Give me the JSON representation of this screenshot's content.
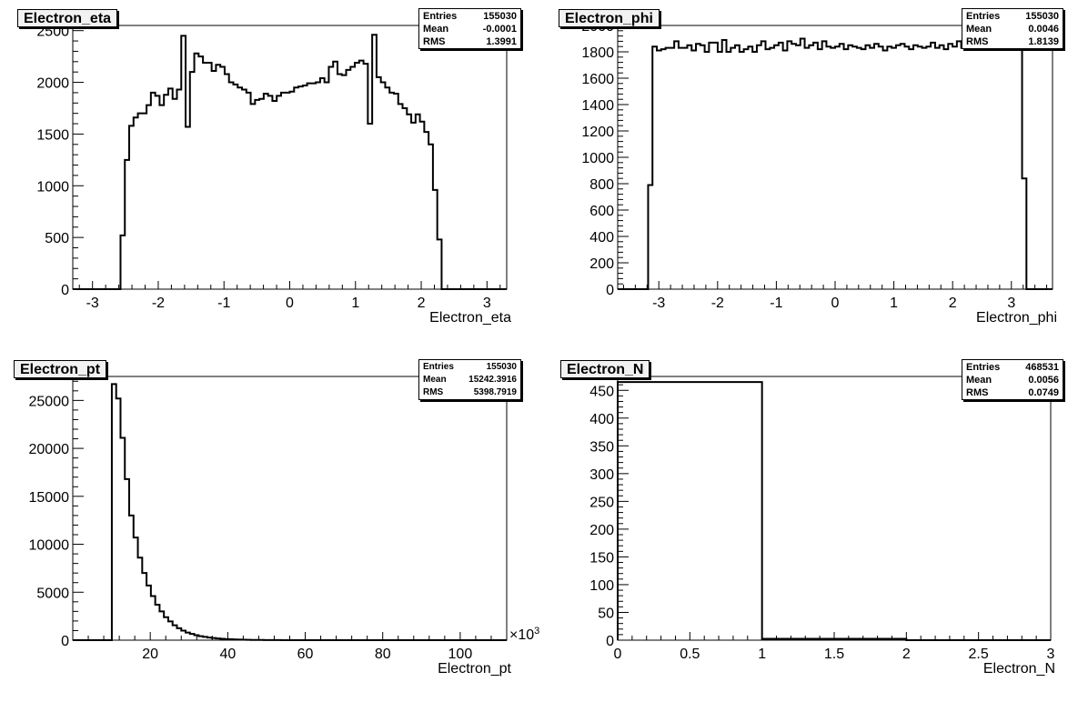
{
  "chart_data": [
    {
      "type": "histogram",
      "title": "Electron_eta",
      "xlabel": "Electron_eta",
      "ylabel": "",
      "xlim": [
        -3.3,
        3.3
      ],
      "ylim": [
        0,
        2550
      ],
      "xticks": [
        -3,
        -2,
        -1,
        0,
        1,
        2,
        3
      ],
      "yticks": [
        0,
        500,
        1000,
        1500,
        2000,
        2500
      ],
      "stats": {
        "entries_label": "Entries",
        "entries": "155030",
        "mean_label": "Mean",
        "mean": "-0.0001",
        "rms_label": "RMS",
        "rms": "1.3991"
      },
      "bin_edges_start": -3.3,
      "bin_width": 0.066,
      "values": [
        0,
        0,
        0,
        0,
        0,
        0,
        0,
        0,
        0,
        0,
        0,
        520,
        1250,
        1580,
        1660,
        1700,
        1700,
        1780,
        1900,
        1870,
        1780,
        1880,
        1940,
        1840,
        1930,
        2450,
        1570,
        2100,
        2280,
        2250,
        2190,
        2190,
        2110,
        2170,
        2150,
        2080,
        2000,
        1980,
        1950,
        1930,
        1900,
        1790,
        1830,
        1840,
        1890,
        1870,
        1820,
        1870,
        1900,
        1900,
        1910,
        1950,
        1960,
        1970,
        1990,
        1990,
        2000,
        2040,
        2000,
        2150,
        2200,
        2080,
        2070,
        2120,
        2150,
        2190,
        2210,
        2180,
        1600,
        2460,
        2050,
        2000,
        1950,
        1900,
        1890,
        1790,
        1750,
        1690,
        1610,
        1690,
        1620,
        1520,
        1400,
        960,
        480,
        0,
        0,
        0,
        0,
        0,
        0,
        0,
        0,
        0,
        0,
        0,
        0,
        0,
        0,
        0
      ]
    },
    {
      "type": "histogram",
      "title": "Electron_phi",
      "xlabel": "Electron_phi",
      "ylabel": "",
      "xlim": [
        -3.7,
        3.7
      ],
      "ylim": [
        0,
        2000
      ],
      "xticks": [
        -3,
        -2,
        -1,
        0,
        1,
        2,
        3
      ],
      "yticks": [
        0,
        200,
        400,
        600,
        800,
        1000,
        1200,
        1400,
        1600,
        1800,
        2000
      ],
      "stats": {
        "entries_label": "Entries",
        "entries": "155030",
        "mean_label": "Mean",
        "mean": "0.0046",
        "rms_label": "RMS",
        "rms": "1.8139"
      },
      "bin_edges_start": -3.7,
      "bin_width": 0.074,
      "values": [
        0,
        0,
        0,
        0,
        0,
        0,
        0,
        790,
        1840,
        1810,
        1820,
        1830,
        1830,
        1880,
        1830,
        1830,
        1850,
        1810,
        1860,
        1850,
        1800,
        1870,
        1870,
        1800,
        1890,
        1800,
        1830,
        1850,
        1800,
        1820,
        1840,
        1800,
        1850,
        1880,
        1820,
        1830,
        1850,
        1870,
        1810,
        1880,
        1860,
        1850,
        1900,
        1830,
        1850,
        1870,
        1820,
        1880,
        1840,
        1830,
        1840,
        1860,
        1820,
        1850,
        1840,
        1830,
        1820,
        1850,
        1830,
        1860,
        1840,
        1810,
        1840,
        1830,
        1850,
        1860,
        1840,
        1820,
        1850,
        1840,
        1830,
        1840,
        1870,
        1830,
        1850,
        1820,
        1860,
        1840,
        1880,
        1830,
        1850,
        1840,
        1820,
        1870,
        1840,
        1830,
        1860,
        1840,
        1820,
        1850,
        1830,
        1850,
        2000,
        840,
        0,
        0,
        0,
        0,
        0,
        0
      ]
    },
    {
      "type": "histogram",
      "title": "Electron_pt",
      "xlabel": "Electron_pt",
      "ylabel": "",
      "xlim": [
        0,
        112
      ],
      "ylim": [
        0,
        27500
      ],
      "xticks": [
        20,
        40,
        60,
        80,
        100
      ],
      "yticks": [
        0,
        5000,
        10000,
        15000,
        20000,
        25000
      ],
      "xmultiplier": "×10",
      "xmultiplier_exp": "3",
      "stats": {
        "entries_label": "Entries",
        "entries": "155030",
        "mean_label": "Mean",
        "mean": "15242.3916",
        "rms_label": "RMS",
        "rms": "5398.7919"
      },
      "bin_edges_start": 0,
      "bin_width": 1.12,
      "values": [
        0,
        0,
        0,
        0,
        0,
        0,
        0,
        0,
        0,
        26700,
        25200,
        21100,
        16800,
        13000,
        10700,
        8600,
        7000,
        5700,
        4600,
        3700,
        3000,
        2400,
        1950,
        1550,
        1250,
        1000,
        800,
        650,
        520,
        420,
        340,
        270,
        220,
        180,
        140,
        110,
        90,
        70,
        55,
        45,
        35,
        28,
        22,
        18,
        14,
        11,
        9,
        7,
        5,
        4,
        3,
        2,
        2,
        1,
        1,
        1,
        0,
        0,
        0,
        0,
        0,
        0,
        0,
        0,
        0,
        0,
        0,
        0,
        0,
        0,
        0,
        0,
        0,
        0,
        0,
        0,
        0,
        0,
        0,
        0,
        0,
        0,
        0,
        0,
        0,
        0,
        0,
        0,
        0,
        0,
        0,
        0,
        0,
        0,
        0,
        0,
        0,
        0,
        0,
        0
      ]
    },
    {
      "type": "histogram",
      "title": "Electron_N",
      "xlabel": "Electron_N",
      "ylabel": "",
      "xlim": [
        0,
        3
      ],
      "ylim": [
        0,
        475
      ],
      "xticks": [
        0,
        0.5,
        1,
        1.5,
        2,
        2.5,
        3
      ],
      "yticks": [
        0,
        50,
        100,
        150,
        200,
        250,
        300,
        350,
        400,
        450
      ],
      "stats": {
        "entries_label": "Entries",
        "entries": "468531",
        "mean_label": "Mean",
        "mean": "0.0056",
        "rms_label": "RMS",
        "rms": "0.0749"
      },
      "bin_edges_start": 0,
      "bin_width": 1,
      "values": [
        465,
        2.5,
        0
      ]
    }
  ]
}
